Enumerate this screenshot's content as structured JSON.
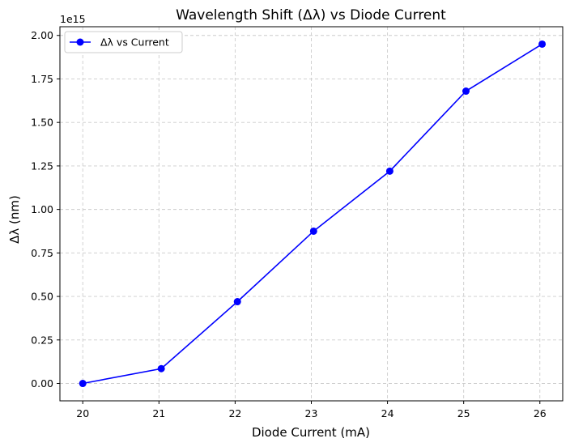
{
  "chart_data": {
    "type": "line",
    "title": "Wavelength Shift (Δλ) vs Diode Current",
    "xlabel": "Diode Current (mA)",
    "ylabel": "Δλ (nm)",
    "y_offset_label": "1e15",
    "xlim": [
      19.7,
      26.3
    ],
    "ylim": [
      -0.1,
      2.05
    ],
    "x_ticks": [
      20,
      21,
      22,
      23,
      24,
      25,
      26
    ],
    "y_ticks": [
      0.0,
      0.25,
      0.5,
      0.75,
      1.0,
      1.25,
      1.5,
      1.75,
      2.0
    ],
    "y_tick_labels": [
      "0.00",
      "0.25",
      "0.50",
      "0.75",
      "1.00",
      "1.25",
      "1.50",
      "1.75",
      "2.00"
    ],
    "grid": true,
    "legend_position": "upper-left",
    "series": [
      {
        "name": "Δλ vs Current",
        "color": "#0000ff",
        "marker": "circle",
        "x": [
          20.0,
          21.03,
          22.03,
          23.03,
          24.03,
          25.03,
          26.03
        ],
        "y": [
          0.0,
          0.085,
          0.47,
          0.875,
          1.22,
          1.68,
          1.95
        ]
      }
    ]
  }
}
